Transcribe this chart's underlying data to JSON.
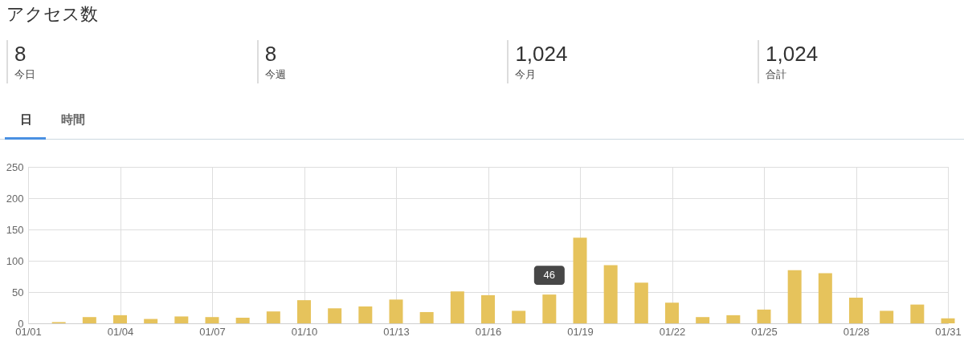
{
  "chart_data": [
    {
      "type": "other",
      "title": "アクセス数",
      "annotations": [
        "8",
        "今日",
        "8",
        "今週",
        "1,024",
        "今月",
        "1,024",
        "合計"
      ]
    },
    {
      "type": "bar",
      "annotations": [
        "日",
        "時間"
      ],
      "x": [
        "--01-01",
        "--01-02",
        "--01-03",
        "--01-04",
        "--01-05",
        "--01-06",
        "--01-07",
        "--01-08",
        "--01-09",
        "--01-10",
        "--01-11",
        "--01-12",
        "--01-13",
        "--01-14",
        "--01-15",
        "--01-16",
        "--01-17",
        "--01-18",
        "--01-19",
        "--01-20",
        "--01-21",
        "--01-22",
        "--01-23",
        "--01-24",
        "--01-25",
        "--01-26",
        "--01-27",
        "--01-28",
        "--01-29",
        "--01-30",
        "--01-31"
      ],
      "values": [
        0,
        2,
        10,
        13,
        7,
        11,
        10,
        9,
        19,
        37,
        24,
        27,
        38,
        18,
        51,
        45,
        20,
        46,
        137,
        93,
        65,
        33,
        10,
        13,
        22,
        85,
        80,
        41,
        20,
        30,
        8
      ],
      "value_labels": [
        null,
        null,
        null,
        null,
        null,
        null,
        null,
        null,
        null,
        null,
        null,
        null,
        null,
        null,
        null,
        null,
        null,
        "46",
        null,
        null,
        null,
        null,
        null,
        null,
        null,
        null,
        null,
        null,
        null,
        null,
        null
      ],
      "color": "#e6c35c",
      "xlim": [
        "--01-01",
        "--01-31"
      ],
      "xticks": [
        {
          "value": "--01-01",
          "label": "01/01"
        },
        {
          "value": "--01-04",
          "label": "01/04"
        },
        {
          "value": "--01-07",
          "label": "01/07"
        },
        {
          "value": "--01-10",
          "label": "01/10"
        },
        {
          "value": "--01-13",
          "label": "01/13"
        },
        {
          "value": "--01-16",
          "label": "01/16"
        },
        {
          "value": "--01-19",
          "label": "01/19"
        },
        {
          "value": "--01-22",
          "label": "01/22"
        },
        {
          "value": "--01-25",
          "label": "01/25"
        },
        {
          "value": "--01-28",
          "label": "01/28"
        },
        {
          "value": "--01-31",
          "label": "01/31"
        }
      ],
      "ylim": [
        0,
        250
      ],
      "yticks": [
        0,
        50,
        100,
        150,
        200,
        250
      ],
      "grid": true
    }
  ]
}
